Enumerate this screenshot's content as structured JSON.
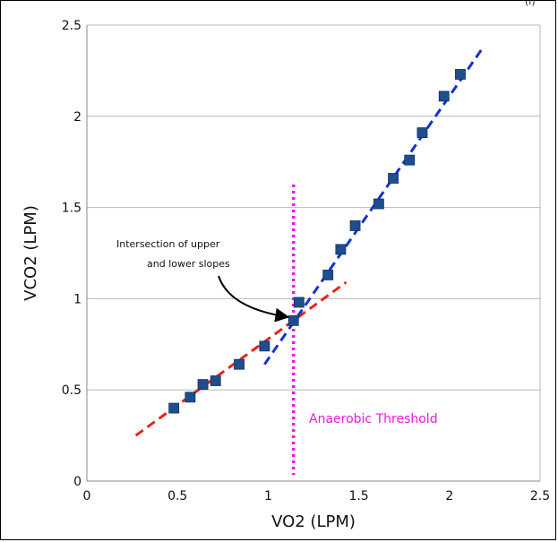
{
  "corner_mark": "(i)",
  "chart_data": {
    "type": "scatter",
    "xlabel": "VO2 (LPM)",
    "ylabel": "VCO2 (LPM)",
    "xlim": [
      0,
      2.5
    ],
    "ylim": [
      0,
      2.5
    ],
    "x_ticks": [
      "0",
      "0.5",
      "1",
      "1.5",
      "2",
      "2.5"
    ],
    "y_ticks": [
      "0",
      "0.5",
      "1",
      "1.5",
      "2",
      "2.5"
    ],
    "grid": "horizontal",
    "series": [
      {
        "marker": "square",
        "color": "#1f4e8c",
        "x": [
          0.48,
          0.57,
          0.64,
          0.71,
          0.84,
          0.98,
          1.14,
          1.17,
          1.33,
          1.4,
          1.48,
          1.61,
          1.69,
          1.78,
          1.85,
          1.97,
          2.06
        ],
        "y": [
          0.4,
          0.46,
          0.53,
          0.55,
          0.64,
          0.74,
          0.88,
          0.98,
          1.13,
          1.27,
          1.4,
          1.52,
          1.66,
          1.76,
          1.91,
          2.11,
          2.23
        ]
      }
    ],
    "lines": [
      {
        "color": "#e8231c",
        "style": "dashed",
        "x": [
          0.27,
          1.43
        ],
        "y": [
          0.25,
          1.09
        ]
      },
      {
        "color": "#1233d6",
        "style": "dashed",
        "x": [
          0.98,
          2.18
        ],
        "y": [
          0.64,
          2.37
        ]
      }
    ],
    "vline": {
      "x": 1.14,
      "color": "#ee18e6",
      "style": "dotted"
    },
    "annotations": [
      {
        "lines": [
          "Intersection of upper",
          "and lower slopes"
        ],
        "target": [
          1.14,
          0.88
        ]
      },
      {
        "text": "Anaerobic Threshold",
        "color": "#ee18e6",
        "x": 1.22,
        "y": 0.33
      }
    ]
  }
}
